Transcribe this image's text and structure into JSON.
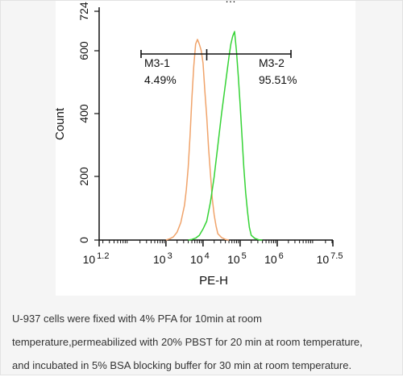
{
  "chart_data": {
    "type": "line",
    "title_partial": "…",
    "xlabel": "PE-H",
    "ylabel": "Count",
    "x_scale": "log10",
    "x_ticks": [
      {
        "base": "10",
        "exp": "1.2"
      },
      {
        "base": "10",
        "exp": "3"
      },
      {
        "base": "10",
        "exp": "4"
      },
      {
        "base": "10",
        "exp": "5"
      },
      {
        "base": "10",
        "exp": "6"
      },
      {
        "base": "10",
        "exp": "7.5"
      }
    ],
    "y_ticks": [
      "0",
      "200",
      "400",
      "600",
      "724"
    ],
    "ylim": [
      0,
      724
    ],
    "series": [
      {
        "name": "",
        "color": "#f0a36a",
        "x_log10": [
          3.0,
          3.1,
          3.2,
          3.3,
          3.4,
          3.5,
          3.55,
          3.6,
          3.65,
          3.7,
          3.75,
          3.8,
          3.85,
          3.9,
          3.95,
          4.0,
          4.05,
          4.1,
          4.15,
          4.2,
          4.25,
          4.3,
          4.35,
          4.4,
          4.5,
          4.6,
          4.7
        ],
        "values": [
          0,
          4,
          10,
          25,
          55,
          110,
          160,
          230,
          330,
          450,
          550,
          620,
          635,
          620,
          600,
          560,
          470,
          390,
          290,
          210,
          130,
          80,
          45,
          20,
          8,
          2,
          0
        ]
      },
      {
        "name": "",
        "color": "#35d335",
        "x_log10": [
          3.6,
          3.7,
          3.8,
          3.9,
          4.0,
          4.1,
          4.2,
          4.3,
          4.4,
          4.5,
          4.6,
          4.7,
          4.75,
          4.8,
          4.85,
          4.9,
          4.95,
          5.0,
          5.05,
          5.1,
          5.15,
          5.2,
          5.25,
          5.3,
          5.4,
          5.5,
          5.6
        ],
        "values": [
          0,
          2,
          6,
          15,
          35,
          60,
          120,
          200,
          300,
          400,
          490,
          580,
          620,
          645,
          660,
          600,
          520,
          430,
          330,
          230,
          150,
          90,
          40,
          15,
          5,
          1,
          0
        ]
      }
    ],
    "gates": [
      {
        "name": "M3-1",
        "percent": "4.49%",
        "from_log10": 1.2,
        "to_log10": 4.1
      },
      {
        "name": "M3-2",
        "percent": "95.51%",
        "from_log10": 4.1,
        "to_log10": 7.5
      }
    ]
  },
  "caption": {
    "line1": "U-937 cells were fixed with 4% PFA for 10min at room",
    "line2": "temperature,permeabilized with 20% PBST for 20 min at room temperature,",
    "line3": "and incubated in 5% BSA blocking buffer for 30 min at room temperature."
  }
}
